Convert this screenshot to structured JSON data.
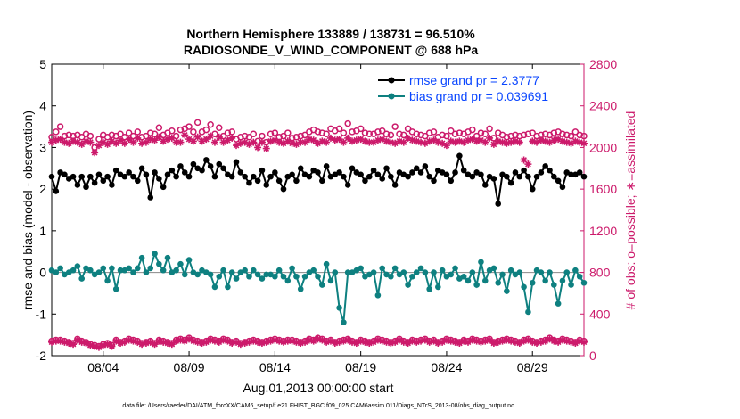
{
  "chart_data": {
    "type": "line",
    "title_line1": "Northern Hemisphere 133889 / 138731 = 96.510%",
    "title_line2": "RADIOSONDE_V_WIND_COMPONENT @ 688 hPa",
    "xlabel": "Aug.01,2013 00:00:00 start",
    "ylabel_left": "rmse and bias (model - observation)",
    "ylabel_right": "# of obs: o=possible; ∗=assimilated",
    "xlim": [
      1,
      32
    ],
    "ylim_left": [
      -2,
      5
    ],
    "ylim_right": [
      0,
      2800
    ],
    "x_ticks": [
      {
        "value": 4,
        "label": "08/04"
      },
      {
        "value": 9,
        "label": "08/09"
      },
      {
        "value": 14,
        "label": "08/14"
      },
      {
        "value": 19,
        "label": "08/19"
      },
      {
        "value": 24,
        "label": "08/24"
      },
      {
        "value": 29,
        "label": "08/29"
      }
    ],
    "y_ticks_left": [
      "-2",
      "-1",
      "0",
      "1",
      "2",
      "3",
      "4",
      "5"
    ],
    "y_ticks_right": [
      "0",
      "400",
      "800",
      "1200",
      "1600",
      "2000",
      "2400",
      "2800"
    ],
    "x_step_days": 0.25,
    "zero_line": 0,
    "series": [
      {
        "name": "rmse grand pr = 2.3777",
        "axis": "left",
        "color": "#000000",
        "marker": "dot",
        "values": [
          2.3,
          1.95,
          2.4,
          2.35,
          2.25,
          2.3,
          2.1,
          2.3,
          2.05,
          2.3,
          2.15,
          2.35,
          2.2,
          2.3,
          2.1,
          2.45,
          2.35,
          2.3,
          2.4,
          2.3,
          2.2,
          2.5,
          2.35,
          1.8,
          2.4,
          2.25,
          2.05,
          2.35,
          2.45,
          2.3,
          2.55,
          2.4,
          2.3,
          2.6,
          2.5,
          2.45,
          2.7,
          2.55,
          2.3,
          2.6,
          2.5,
          2.35,
          2.3,
          2.65,
          2.4,
          2.3,
          2.15,
          2.3,
          2.2,
          2.45,
          2.1,
          2.3,
          2.4,
          2.2,
          2.0,
          2.3,
          2.35,
          2.2,
          2.5,
          2.35,
          2.3,
          2.45,
          2.4,
          2.2,
          2.55,
          2.3,
          2.35,
          2.4,
          2.3,
          2.1,
          2.5,
          2.4,
          2.35,
          2.2,
          2.3,
          2.45,
          2.35,
          2.25,
          2.5,
          2.3,
          2.1,
          2.4,
          2.35,
          2.3,
          2.4,
          2.5,
          2.4,
          2.55,
          2.3,
          2.2,
          2.45,
          2.4,
          2.35,
          2.2,
          2.4,
          2.8,
          2.45,
          2.35,
          2.3,
          2.4,
          2.35,
          2.1,
          2.3,
          2.25,
          1.65,
          2.35,
          2.3,
          2.15,
          2.4,
          2.3,
          2.45,
          2.3,
          2.0,
          2.3,
          2.4,
          2.55,
          2.45,
          2.3,
          2.2,
          2.05,
          2.4,
          2.35,
          2.35,
          2.4,
          2.3,
          2.35,
          2.05,
          2.25,
          2.4,
          2.35,
          2.35,
          2.3,
          2.4,
          2.4,
          2.3,
          1.9,
          2.3,
          2.4,
          2.45,
          2.3,
          2.35,
          2.2,
          2.4,
          2.25,
          2.3,
          2.4,
          2.55,
          2.45,
          2.3,
          2.5,
          2.4,
          2.35,
          2.6,
          2.35,
          2.25,
          2.5,
          2.55,
          2.3,
          2.4,
          2.05,
          2.3,
          2.45,
          2.15,
          2.15
        ]
      },
      {
        "name": "bias grand pr = 0.039691",
        "axis": "left",
        "color": "#0e8080",
        "marker": "dot",
        "values": [
          0.05,
          0.0,
          0.1,
          -0.05,
          0.0,
          0.05,
          0.15,
          -0.15,
          0.1,
          0.05,
          -0.05,
          0.0,
          0.1,
          -0.2,
          0.1,
          -0.4,
          0.05,
          0.05,
          0.1,
          0.0,
          0.1,
          0.35,
          0.0,
          0.1,
          0.45,
          0.2,
          0.05,
          0.35,
          0.0,
          0.05,
          0.2,
          -0.05,
          0.3,
          0.0,
          -0.05,
          0.05,
          0.0,
          -0.05,
          -0.35,
          -0.1,
          0.05,
          -0.35,
          0.0,
          -0.15,
          0.0,
          0.05,
          -0.1,
          0.05,
          -0.05,
          -0.15,
          -0.05,
          -0.05,
          -0.1,
          0.05,
          -0.1,
          -0.2,
          0.1,
          -0.1,
          -0.4,
          -0.1,
          0.0,
          0.05,
          -0.1,
          -0.3,
          0.2,
          -0.2,
          0.0,
          -0.85,
          -1.2,
          0.0,
          0.0,
          0.05,
          0.1,
          -0.1,
          -0.05,
          0.0,
          -0.55,
          0.1,
          -0.05,
          -0.1,
          0.1,
          -0.05,
          0.0,
          -0.3,
          -0.1,
          0.0,
          0.1,
          0.0,
          -0.4,
          0.0,
          -0.35,
          0.05,
          -0.1,
          -0.05,
          0.1,
          -0.15,
          -0.1,
          -0.2,
          0.0,
          -0.3,
          0.25,
          -0.2,
          0.05,
          0.1,
          -0.25,
          -0.05,
          -0.45,
          0.05,
          -0.05,
          0.0,
          -0.35,
          -0.95,
          -0.25,
          0.05,
          0.0,
          -0.2,
          0.0,
          -0.3,
          -0.75,
          -0.2,
          0.0,
          -0.3,
          0.05,
          -0.1,
          -0.25,
          -0.5,
          -0.05,
          0.0,
          0.05,
          0.0,
          0.25,
          0.1,
          0.0,
          -0.05,
          0.3,
          0.05,
          0.0,
          0.55,
          0.05,
          0.0,
          0.0,
          0.1,
          0.15,
          0.0,
          0.05,
          0.1,
          0.0,
          -0.1,
          0.05,
          0.1,
          0.0,
          -0.1,
          -0.05,
          0.1,
          0.0,
          0.15,
          -0.3,
          0.15,
          0.15,
          0.05,
          -1.05,
          0.05,
          0.1,
          0.0,
          -0.05,
          -0.1,
          0.0,
          0.1,
          0.0,
          0.05,
          0.05,
          0.45,
          0.0,
          0.2,
          0.05,
          0.15,
          0.0,
          -0.05,
          0.0,
          -0.15,
          -0.05,
          0.1,
          0.05,
          -0.15,
          -0.05,
          0.05,
          0.05,
          0.0,
          0.15,
          0.1
        ]
      },
      {
        "name": "# of obs possible",
        "axis": "right",
        "color": "#cc1a6b",
        "marker": "circle",
        "values": [
          2100,
          2150,
          2200,
          2110,
          2120,
          2110,
          2120,
          2100,
          2130,
          2110,
          2000,
          2080,
          2120,
          2100,
          2120,
          2110,
          2130,
          2100,
          2140,
          2110,
          2150,
          2100,
          2110,
          2140,
          2130,
          2190,
          2120,
          2140,
          2160,
          2110,
          2170,
          2180,
          2200,
          2150,
          2240,
          2150,
          2170,
          2220,
          2130,
          2190,
          2110,
          2140,
          2150,
          2080,
          2100,
          2110,
          2100,
          2130,
          2060,
          2110,
          2050,
          2130,
          2140,
          2100,
          2110,
          2140,
          2090,
          2100,
          2110,
          2120,
          2150,
          2170,
          2150,
          2140,
          2130,
          2180,
          2160,
          2180,
          2140,
          2230,
          2150,
          2160,
          2180,
          2140,
          2130,
          2130,
          2150,
          2160,
          2130,
          2120,
          2200,
          2130,
          2120,
          2180,
          2150,
          2130,
          2120,
          2110,
          2140,
          2150,
          2100,
          2120,
          2110,
          2160,
          2130,
          2140,
          2130,
          2150,
          2170,
          2110,
          2140,
          2130,
          2180,
          2090,
          2140,
          2120,
          2100,
          2110,
          2120,
          2110,
          2120,
          2130,
          2140,
          2110,
          2120,
          2130,
          2120,
          2140,
          2150,
          2130,
          2120,
          2110,
          2150,
          2120,
          2110,
          2120,
          2140,
          2110,
          2150,
          2120,
          2110,
          2120,
          2140,
          2130,
          2120,
          2110,
          2140,
          2130,
          2160,
          2150,
          2130,
          2140,
          2120,
          2130,
          2110,
          2140,
          2120,
          2130,
          2130,
          2150,
          2140,
          2160,
          2170,
          2140,
          2150,
          2130,
          2160,
          2140,
          2120,
          2140,
          2130,
          2160,
          2140,
          2130,
          2150,
          2140,
          2160,
          2130,
          2140,
          2120,
          2150,
          2160,
          2180,
          2130,
          2140
        ]
      },
      {
        "name": "# of obs assimilated",
        "axis": "right",
        "color": "#cc1a6b",
        "marker": "asterisk",
        "values": [
          2050,
          2070,
          2080,
          2050,
          2040,
          2060,
          2050,
          2030,
          2060,
          2050,
          1950,
          2020,
          2050,
          2030,
          2060,
          2040,
          2070,
          2040,
          2080,
          2050,
          2090,
          2040,
          2050,
          2080,
          2070,
          2100,
          2060,
          2080,
          2090,
          2050,
          2050,
          2120,
          2080,
          2060,
          2100,
          2060,
          2080,
          2110,
          2050,
          2100,
          2050,
          2070,
          2090,
          2020,
          2040,
          2050,
          2030,
          2050,
          2000,
          2050,
          1990,
          2060,
          2070,
          2050,
          2040,
          2060,
          2040,
          2030,
          2050,
          2050,
          2080,
          2070,
          2040,
          2060,
          2050,
          2090,
          2070,
          2080,
          2050,
          2090,
          2060,
          2070,
          2080,
          2060,
          2050,
          2050,
          2070,
          2080,
          2060,
          2050,
          2040,
          2060,
          2050,
          2090,
          2070,
          2060,
          2050,
          2040,
          2060,
          2070,
          2050,
          2040,
          2020,
          2060,
          2050,
          2060,
          2050,
          2070,
          2080,
          2060,
          2070,
          2050,
          2090,
          2030,
          2060,
          2050,
          2040,
          2050,
          2060,
          2050,
          1880,
          1840,
          2060,
          2050,
          2070,
          2060,
          2050,
          2070,
          2080,
          2060,
          2050,
          2040,
          2060,
          2050,
          2040,
          2050,
          2060,
          2040,
          2070,
          2050,
          2050,
          2060,
          2080,
          2060,
          2050,
          2050,
          2060,
          2060,
          2080,
          2070,
          2060,
          2070,
          2050,
          2060,
          2050,
          2070,
          2050,
          2060,
          2060,
          2070,
          2060,
          2080,
          2090,
          2060,
          2070,
          2060,
          2080,
          2070,
          2050,
          2060,
          2060,
          2080,
          2060,
          2060,
          2070,
          2060,
          2080,
          2060,
          2060,
          2050,
          2060,
          2070,
          2090,
          2060,
          2060
        ]
      },
      {
        "name": "# of obs (lower band) possible",
        "axis": "right",
        "color": "#cc1a6b",
        "marker": "circle",
        "values": [
          140,
          150,
          150,
          140,
          130,
          120,
          160,
          140,
          130,
          110,
          100,
          90,
          110,
          120,
          100,
          150,
          130,
          140,
          160,
          150,
          140,
          120,
          130,
          140,
          120,
          150,
          140,
          130,
          120,
          150,
          160,
          150,
          170,
          150,
          140,
          130,
          140,
          160,
          150,
          140,
          160,
          150,
          130,
          140,
          120,
          130,
          140,
          150,
          140,
          130,
          140,
          150,
          160,
          150,
          140,
          150,
          150,
          140,
          130,
          140,
          160,
          150,
          170,
          160,
          140,
          150,
          130,
          140,
          150,
          160,
          140,
          130,
          150,
          140,
          130,
          140,
          160,
          150,
          140,
          130,
          140,
          160,
          140,
          130,
          150,
          140,
          150,
          160,
          140,
          150,
          130,
          140,
          160,
          150,
          140,
          130,
          150,
          140,
          160,
          150,
          140,
          150,
          160,
          130,
          140,
          150,
          160,
          150,
          140,
          130,
          150,
          160,
          140,
          130,
          140,
          150,
          170,
          150,
          140,
          160,
          150,
          140,
          130,
          150,
          140,
          160,
          150,
          140,
          150,
          160,
          150,
          140,
          170,
          150,
          140,
          160,
          150,
          140,
          130,
          150,
          140,
          150,
          160,
          140,
          130,
          140,
          150,
          160,
          150,
          140,
          130,
          140,
          120,
          100,
          0
        ]
      },
      {
        "name": "# of obs (lower band) assimilated",
        "axis": "right",
        "color": "#cc1a6b",
        "marker": "asterisk",
        "values": [
          130,
          140,
          140,
          130,
          120,
          110,
          150,
          130,
          120,
          100,
          90,
          80,
          100,
          110,
          90,
          140,
          120,
          130,
          150,
          140,
          130,
          110,
          120,
          130,
          110,
          140,
          130,
          120,
          110,
          140,
          150,
          140,
          160,
          140,
          130,
          120,
          130,
          150,
          140,
          130,
          150,
          140,
          120,
          130,
          110,
          120,
          130,
          140,
          130,
          120,
          130,
          140,
          150,
          140,
          130,
          140,
          140,
          130,
          120,
          130,
          150,
          140,
          160,
          150,
          130,
          140,
          120,
          130,
          140,
          150,
          130,
          120,
          140,
          130,
          120,
          130,
          150,
          140,
          130,
          120,
          130,
          150,
          130,
          120,
          140,
          130,
          140,
          150,
          130,
          140,
          120,
          130,
          150,
          140,
          130,
          120,
          140,
          130,
          150,
          140,
          130,
          140,
          150,
          120,
          130,
          140,
          150,
          140,
          130,
          120,
          140,
          150,
          130,
          120,
          130,
          140,
          160,
          140,
          130,
          150,
          140,
          130,
          120,
          140,
          130,
          150,
          140,
          130,
          140,
          150,
          140,
          130,
          160,
          140,
          130,
          150,
          140,
          130,
          120,
          140,
          130,
          140,
          150,
          130,
          120,
          130,
          140,
          150,
          140,
          130,
          120,
          130,
          110,
          90,
          0
        ]
      }
    ],
    "legend": [
      {
        "label": "rmse grand pr = 2.3777",
        "color": "#000000"
      },
      {
        "label": "bias grand pr = 0.039691",
        "color": "#0e8080"
      }
    ],
    "legend_position": "top-right"
  },
  "footnote": "data file: /Users/raeder/DAI/ATM_forcXX/CAM6_setup/f.e21.FHIST_BGC.f09_025.CAM6assim.011/Diags_NTrS_2013-08/obs_diag_output.nc"
}
